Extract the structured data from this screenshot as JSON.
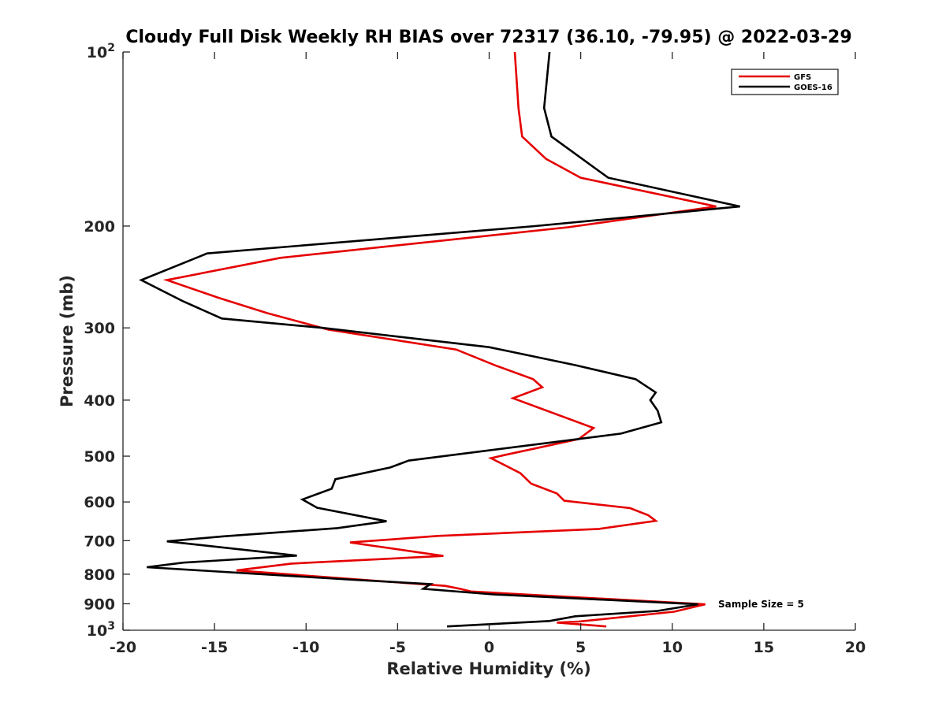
{
  "chart_data": {
    "type": "line",
    "title": "Cloudy Full Disk Weekly RH BIAS over 72317 (36.10, -79.95) @ 2022-03-29",
    "xlabel": "Relative Humidity (%)",
    "ylabel": "Pressure (mb)",
    "xlim": [
      -20,
      20
    ],
    "ylim": [
      1000,
      100
    ],
    "y_scale": "log",
    "y_reversed": true,
    "grid": false,
    "legend_position": "top-right",
    "x_ticks": [
      "-20",
      "-15",
      "-10",
      "-5",
      "0",
      "5",
      "10",
      "15",
      "20"
    ],
    "y_ticks": [
      {
        "value": 100,
        "base": "10",
        "exp": "2"
      },
      {
        "value": 200,
        "label": "200"
      },
      {
        "value": 300,
        "label": "300"
      },
      {
        "value": 400,
        "label": "400"
      },
      {
        "value": 500,
        "label": "500"
      },
      {
        "value": 600,
        "label": "600"
      },
      {
        "value": 700,
        "label": "700"
      },
      {
        "value": 800,
        "label": "800"
      },
      {
        "value": 900,
        "label": "900"
      },
      {
        "value": 1000,
        "base": "10",
        "exp": "3"
      }
    ],
    "annotation": "Sample Size = 5",
    "series": [
      {
        "name": "GFS",
        "color": "#e50000",
        "points": [
          [
            1.4,
            100
          ],
          [
            1.6,
            125
          ],
          [
            1.8,
            140
          ],
          [
            3.1,
            153
          ],
          [
            5.0,
            165
          ],
          [
            12.4,
            185
          ],
          [
            4.3,
            201
          ],
          [
            -11.4,
            227
          ],
          [
            -17.6,
            248
          ],
          [
            -14.8,
            266
          ],
          [
            -12.1,
            283
          ],
          [
            -8.8,
            302
          ],
          [
            -1.8,
            327
          ],
          [
            0.4,
            349
          ],
          [
            2.4,
            368
          ],
          [
            2.9,
            380
          ],
          [
            1.3,
            397
          ],
          [
            5.7,
            447
          ],
          [
            4.9,
            467
          ],
          [
            0.8,
            498
          ],
          [
            0.1,
            504
          ],
          [
            1.7,
            535
          ],
          [
            2.3,
            558
          ],
          [
            3.7,
            580
          ],
          [
            4.1,
            597
          ],
          [
            7.7,
            615
          ],
          [
            8.7,
            633
          ],
          [
            9.1,
            647
          ],
          [
            6.0,
            668
          ],
          [
            -2.8,
            687
          ],
          [
            -7.6,
            705
          ],
          [
            -2.5,
            744
          ],
          [
            -10.8,
            767
          ],
          [
            -13.8,
            788
          ],
          [
            -7.4,
            816
          ],
          [
            -2.4,
            838
          ],
          [
            -1.6,
            848
          ],
          [
            -1.0,
            857
          ],
          [
            11.8,
            902
          ],
          [
            10.1,
            929
          ],
          [
            4.9,
            966
          ],
          [
            3.7,
            970
          ],
          [
            6.4,
            985
          ]
        ]
      },
      {
        "name": "GOES-16",
        "color": "#000000",
        "points": [
          [
            3.3,
            100
          ],
          [
            3.0,
            125
          ],
          [
            3.4,
            140
          ],
          [
            6.5,
            165
          ],
          [
            13.7,
            185
          ],
          [
            2.5,
            200
          ],
          [
            -15.4,
            223
          ],
          [
            -19.0,
            248
          ],
          [
            -16.7,
            270
          ],
          [
            -14.6,
            289
          ],
          [
            -9.1,
            300
          ],
          [
            0.0,
            324
          ],
          [
            4.7,
            348
          ],
          [
            8.0,
            368
          ],
          [
            9.1,
            388
          ],
          [
            8.8,
            400
          ],
          [
            9.2,
            417
          ],
          [
            9.4,
            437
          ],
          [
            7.2,
            457
          ],
          [
            -4.4,
            509
          ],
          [
            -5.4,
            523
          ],
          [
            -8.4,
            548
          ],
          [
            -8.6,
            569
          ],
          [
            -10.2,
            594
          ],
          [
            -9.4,
            614
          ],
          [
            -6.7,
            638
          ],
          [
            -5.6,
            648
          ],
          [
            -8.3,
            666
          ],
          [
            -14.5,
            688
          ],
          [
            -17.6,
            702
          ],
          [
            -10.5,
            743
          ],
          [
            -16.7,
            764
          ],
          [
            -18.7,
            778
          ],
          [
            -7.4,
            818
          ],
          [
            -3.2,
            832
          ],
          [
            -3.6,
            848
          ],
          [
            0.2,
            867
          ],
          [
            11.4,
            902
          ],
          [
            9.2,
            926
          ],
          [
            4.7,
            946
          ],
          [
            3.3,
            964
          ],
          [
            -2.3,
            985
          ]
        ]
      }
    ]
  }
}
